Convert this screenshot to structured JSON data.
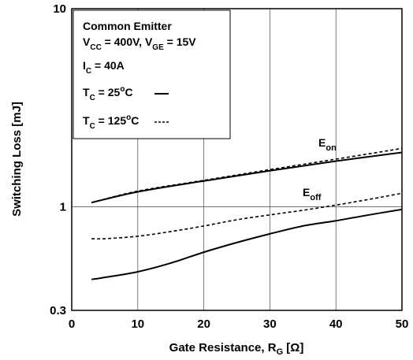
{
  "chart_data": {
    "type": "line",
    "xlabel": "Gate Resistance, R",
    "xlabel_sub": "G",
    "xlabel_unit": " [Ω]",
    "ylabel": "Switching Loss [mJ]",
    "xlim": [
      0,
      50
    ],
    "ylim": [
      0.3,
      10
    ],
    "yscale": "log",
    "grid": true,
    "x_ticks": [
      "0",
      "10",
      "20",
      "30",
      "40",
      "50"
    ],
    "y_ticks": [
      {
        "value": 0.3,
        "label": "0.3"
      },
      {
        "value": 1,
        "label": "1"
      },
      {
        "value": 10,
        "label": "10"
      }
    ],
    "legend": {
      "placement": "top-left",
      "title": "Common Emitter",
      "cond1": {
        "a": "V",
        "a_sub": "CC",
        "a_val": " = 400V, ",
        "b": "V",
        "b_sub": "GE",
        "b_val": " = 15V"
      },
      "cond2": {
        "a": "I",
        "a_sub": "C",
        "a_val": " = 40A"
      },
      "entry1": {
        "a": "T",
        "a_sub": "C",
        "val": " = 25",
        "sup": "o",
        "unit": "C",
        "style": "solid"
      },
      "entry2": {
        "a": "T",
        "a_sub": "C",
        "val": " = 125",
        "sup": "o",
        "unit": "C",
        "style": "dashed"
      }
    },
    "annotations": [
      {
        "main": "E",
        "sub": "on"
      },
      {
        "main": "E",
        "sub": "off"
      }
    ],
    "series": [
      {
        "curve": "Eon",
        "tc": "25",
        "style": "solid",
        "x": [
          3,
          10,
          20,
          30,
          40,
          50
        ],
        "y": [
          1.05,
          1.19,
          1.35,
          1.52,
          1.7,
          1.88
        ]
      },
      {
        "curve": "Eon",
        "tc": "125",
        "style": "dashed",
        "x": [
          3,
          10,
          20,
          30,
          40,
          50
        ],
        "y": [
          1.05,
          1.2,
          1.36,
          1.54,
          1.74,
          1.97
        ]
      },
      {
        "curve": "Eoff",
        "tc": "25",
        "style": "solid",
        "x": [
          3,
          5,
          10,
          15,
          20,
          25,
          30,
          35,
          40,
          45,
          50
        ],
        "y": [
          0.43,
          0.44,
          0.47,
          0.52,
          0.59,
          0.66,
          0.73,
          0.8,
          0.85,
          0.91,
          0.97
        ]
      },
      {
        "curve": "Eoff",
        "tc": "125",
        "style": "dashed",
        "x": [
          3,
          5,
          10,
          15,
          20,
          25,
          30,
          35,
          40,
          45,
          50
        ],
        "y": [
          0.69,
          0.69,
          0.71,
          0.75,
          0.8,
          0.86,
          0.91,
          0.96,
          1.02,
          1.09,
          1.17
        ]
      }
    ]
  }
}
